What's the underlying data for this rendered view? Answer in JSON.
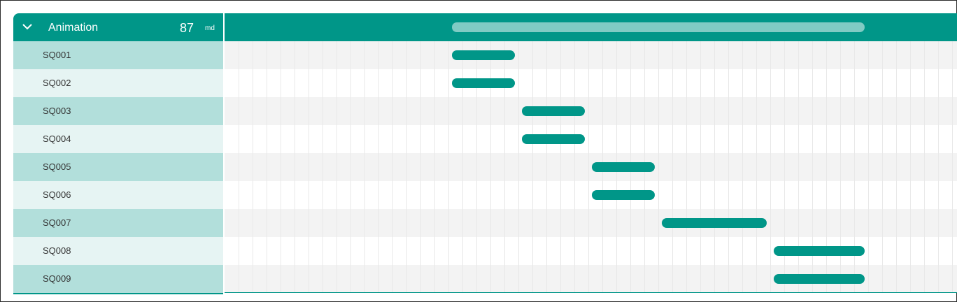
{
  "colors": {
    "accent": "#009688",
    "summary_bar": "#80cbc4",
    "label_row_dark": "#b2dfdb",
    "label_row_light": "#e6f4f3",
    "chart_row_shade": "#f3f3f3"
  },
  "group": {
    "title": "Animation",
    "total": "87",
    "unit": "md",
    "expand_icon": "chevron-down-icon"
  },
  "tasks": [
    {
      "label": "SQ001"
    },
    {
      "label": "SQ002"
    },
    {
      "label": "SQ003"
    },
    {
      "label": "SQ004"
    },
    {
      "label": "SQ005"
    },
    {
      "label": "SQ006"
    },
    {
      "label": "SQ007"
    },
    {
      "label": "SQ008"
    },
    {
      "label": "SQ009"
    }
  ]
}
